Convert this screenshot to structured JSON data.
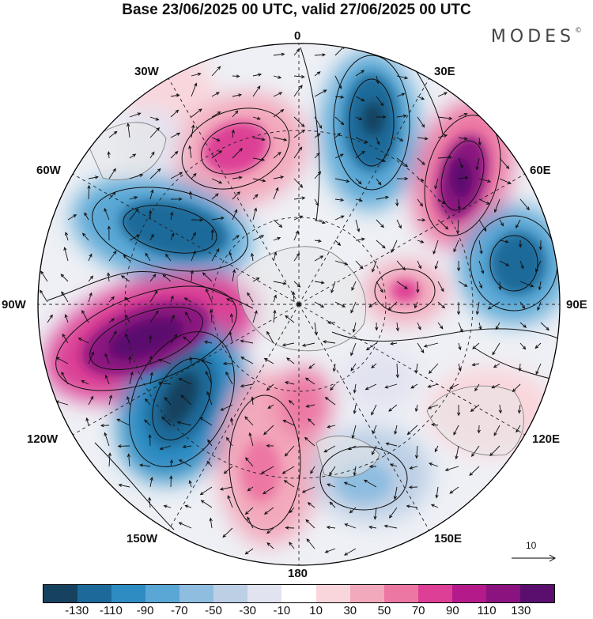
{
  "header": {
    "title": "Base 23/06/2025 00 UTC, valid 27/06/2025 00 UTC",
    "brand": "MODES",
    "brand_mark": "©"
  },
  "longitudes": {
    "n0": "0",
    "w30": "30W",
    "e30": "30E",
    "w60": "60W",
    "e60": "60E",
    "w90": "90W",
    "e90": "90E",
    "w120": "120W",
    "e120": "120E",
    "w150": "150W",
    "e150": "150E",
    "s180": "180"
  },
  "reference_vector": {
    "label": "10"
  },
  "colorbar": {
    "colors": [
      "#16425f",
      "#1d6a9a",
      "#2f8cc2",
      "#5aa7d5",
      "#8fbde0",
      "#bccfe5",
      "#e2e3f0",
      "#ffffff",
      "#f9d6dc",
      "#f3a9bc",
      "#ec77a3",
      "#dc3f95",
      "#b51a8a",
      "#8a137f",
      "#5a0f6e"
    ],
    "labels": [
      "-130",
      "-110",
      "-90",
      "-70",
      "-50",
      "-30",
      "-10",
      "10",
      "30",
      "50",
      "70",
      "90",
      "110",
      "130"
    ]
  },
  "anomaly_centers": [
    {
      "name": "positive-anomaly-north-atlantic",
      "sign": "positive",
      "color": "#dc3f95"
    },
    {
      "name": "negative-anomaly-scandinavia",
      "sign": "negative",
      "color": "#1d6a9a"
    },
    {
      "name": "positive-anomaly-western-russia",
      "sign": "positive",
      "color": "#8a137f"
    },
    {
      "name": "negative-anomaly-central-siberia",
      "sign": "negative",
      "color": "#2f8cc2"
    },
    {
      "name": "positive-anomaly-western-siberia",
      "sign": "positive",
      "color": "#ec77a3"
    },
    {
      "name": "negative-anomaly-north-canada",
      "sign": "negative",
      "color": "#1d6a9a"
    },
    {
      "name": "positive-anomaly-alaska-canada",
      "sign": "positive",
      "color": "#5a0f6e"
    },
    {
      "name": "negative-anomaly-north-pacific",
      "sign": "negative",
      "color": "#16425f"
    },
    {
      "name": "positive-anomaly-bering",
      "sign": "positive",
      "color": "#ec77a3"
    },
    {
      "name": "positive-anomaly-pacific",
      "sign": "positive",
      "color": "#dc3f95"
    },
    {
      "name": "negative-anomaly-east-siberia",
      "sign": "negative",
      "color": "#8fbde0"
    },
    {
      "name": "positive-anomaly-china",
      "sign": "positive",
      "color": "#f3a9bc"
    }
  ]
}
